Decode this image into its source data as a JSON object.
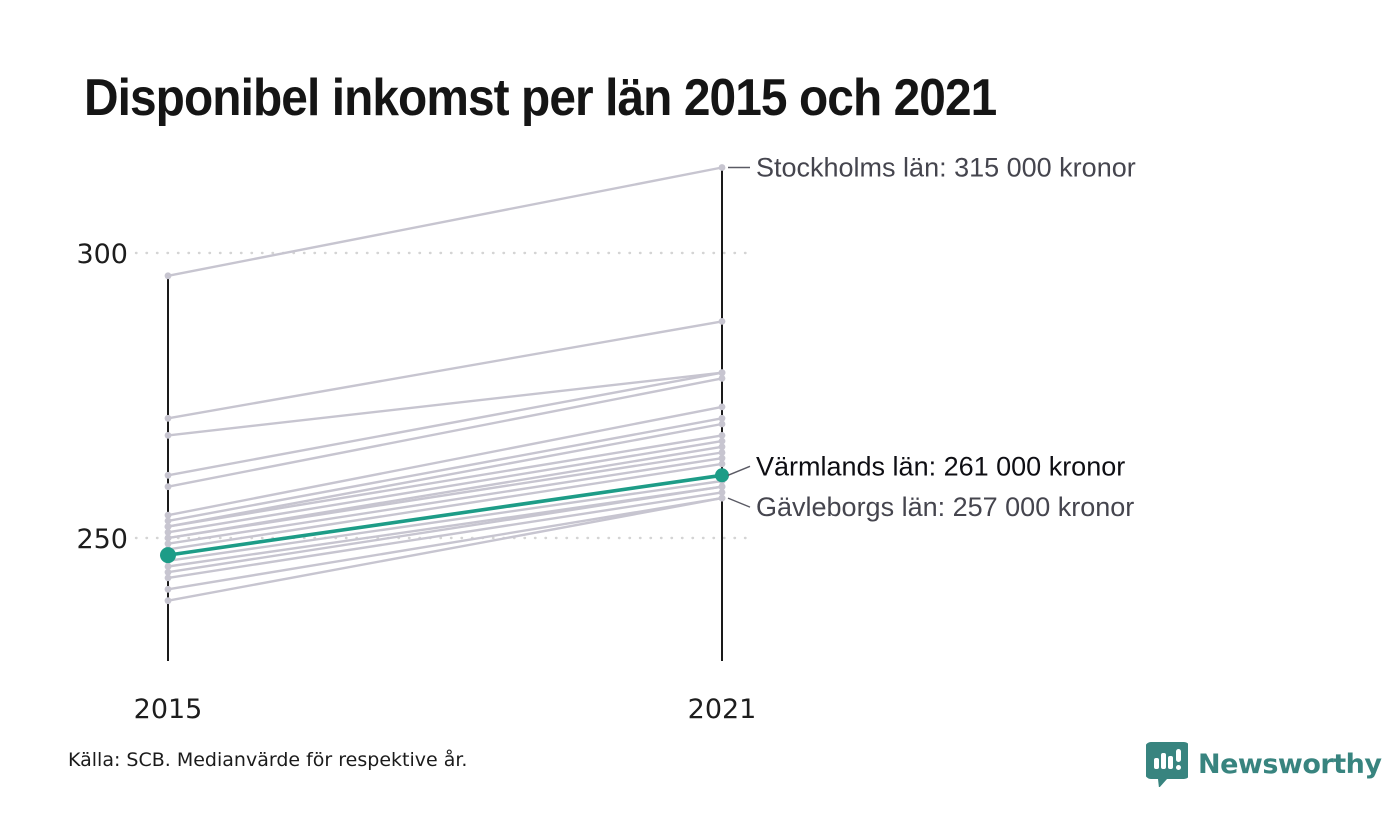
{
  "title": "Disponibel inkomst per län 2015 och 2021",
  "source": "Källa: SCB. Medianvärde för respektive år.",
  "branding": {
    "name": "Newsworthy",
    "icon": "bar-chart-speech-bubble",
    "color": "#38847f"
  },
  "colors": {
    "line_gray": "#c7c5d0",
    "highlight_teal": "#1d9c87",
    "axis_black": "#1a1a1a",
    "grid_dot": "#d4d4d4",
    "annotation_gray": "#45454e",
    "annotation_dark": "#0e0e13",
    "connector_gray": "#5a5a64",
    "title_black": "#151515"
  },
  "chart_data": {
    "type": "line",
    "subtype": "slope-chart",
    "title": "Disponibel inkomst per län 2015 och 2021",
    "x_categories": [
      "2015",
      "2021"
    ],
    "y_ticks": [
      300,
      250
    ],
    "y_tick_labels": [
      "300",
      "250"
    ],
    "ylim": [
      232,
      322
    ],
    "unit_hint": "tusen kronor (värden i 000 kronor)",
    "grid": "dotted horizontal at y ticks",
    "legend_position": "none",
    "columns": [
      "2015",
      "2021"
    ],
    "lines": [
      [
        296,
        315
      ],
      [
        271,
        288
      ],
      [
        268,
        279
      ],
      [
        261,
        279
      ],
      [
        259,
        278
      ],
      [
        254,
        273
      ],
      [
        253,
        271
      ],
      [
        252,
        270
      ],
      [
        252,
        268
      ],
      [
        251,
        267
      ],
      [
        250,
        266
      ],
      [
        250,
        265
      ],
      [
        249,
        264
      ],
      [
        248,
        263
      ],
      [
        246,
        260
      ],
      [
        245,
        259
      ],
      [
        244,
        259
      ],
      [
        243,
        258
      ],
      [
        241,
        257
      ],
      [
        239,
        257
      ]
    ],
    "highlight": {
      "name": "Värmlands län",
      "values": [
        247,
        261
      ],
      "color": "#1d9c87"
    },
    "annotations": [
      {
        "text": "Stockholms län: 315 000 kronor",
        "value": 315,
        "dy": 0,
        "emphasis": false
      },
      {
        "text": "Värmlands län: 261 000 kronor",
        "value": 261,
        "dy": -9,
        "emphasis": true
      },
      {
        "text": "Gävleborgs län: 257 000 kronor",
        "value": 257,
        "dy": 9,
        "emphasis": false
      }
    ]
  }
}
